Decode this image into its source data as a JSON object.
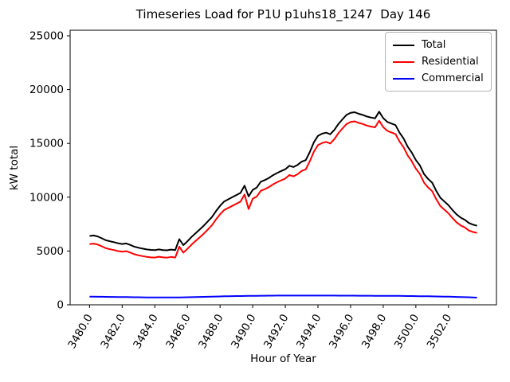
{
  "chart_data": {
    "type": "line",
    "title": "Timeseries Load for P1U p1uhs18_1247  Day 146",
    "xlabel": "Hour of Year",
    "ylabel": "kW total",
    "grid": false,
    "legend_position": "upper right",
    "xlim": [
      3478.81,
      3504.94
    ],
    "ylim": [
      0,
      25517
    ],
    "xticks": {
      "values": [
        3480,
        3482,
        3484,
        3486,
        3488,
        3490,
        3492,
        3494,
        3496,
        3498,
        3500,
        3502
      ],
      "labels": [
        "3480.0",
        "3482.0",
        "3484.0",
        "3486.0",
        "3488.0",
        "3490.0",
        "3492.0",
        "3494.0",
        "3496.0",
        "3498.0",
        "3500.0",
        "3502.0"
      ]
    },
    "yticks": {
      "values": [
        0,
        5000,
        10000,
        15000,
        20000,
        25000
      ],
      "labels": [
        "0",
        "5000",
        "10000",
        "15000",
        "20000",
        "25000"
      ]
    },
    "x": [
      3480.0,
      3480.25,
      3480.5,
      3480.75,
      3481.0,
      3481.25,
      3481.5,
      3481.75,
      3482.0,
      3482.25,
      3482.5,
      3482.75,
      3483.0,
      3483.25,
      3483.5,
      3483.75,
      3484.0,
      3484.25,
      3484.5,
      3484.75,
      3485.0,
      3485.25,
      3485.5,
      3485.75,
      3486.0,
      3486.25,
      3486.5,
      3486.75,
      3487.0,
      3487.25,
      3487.5,
      3487.75,
      3488.0,
      3488.25,
      3488.5,
      3488.75,
      3489.0,
      3489.25,
      3489.5,
      3489.75,
      3490.0,
      3490.25,
      3490.5,
      3490.75,
      3491.0,
      3491.25,
      3491.5,
      3491.75,
      3492.0,
      3492.25,
      3492.5,
      3492.75,
      3493.0,
      3493.25,
      3493.5,
      3493.75,
      3494.0,
      3494.25,
      3494.5,
      3494.75,
      3495.0,
      3495.25,
      3495.5,
      3495.75,
      3496.0,
      3496.25,
      3496.5,
      3496.75,
      3497.0,
      3497.25,
      3497.5,
      3497.75,
      3498.0,
      3498.25,
      3498.5,
      3498.75,
      3499.0,
      3499.25,
      3499.5,
      3499.75,
      3500.0,
      3500.25,
      3500.5,
      3500.75,
      3501.0,
      3501.25,
      3501.5,
      3501.75,
      3502.0,
      3502.25,
      3502.5,
      3502.75,
      3503.0,
      3503.25,
      3503.5,
      3503.75
    ],
    "series": [
      {
        "name": "Total",
        "color": "#000000",
        "values": [
          6400,
          6440,
          6350,
          6180,
          6000,
          5900,
          5820,
          5720,
          5650,
          5700,
          5560,
          5400,
          5300,
          5220,
          5150,
          5100,
          5080,
          5150,
          5090,
          5070,
          5130,
          5080,
          6100,
          5550,
          5900,
          6300,
          6650,
          7000,
          7350,
          7750,
          8150,
          8700,
          9200,
          9600,
          9800,
          10000,
          10200,
          10400,
          11070,
          10070,
          10680,
          10900,
          11440,
          11600,
          11800,
          12050,
          12250,
          12430,
          12600,
          12920,
          12800,
          13000,
          13300,
          13450,
          14200,
          15100,
          15700,
          15900,
          16000,
          15850,
          16250,
          16800,
          17230,
          17650,
          17850,
          17900,
          17750,
          17650,
          17500,
          17400,
          17330,
          17950,
          17350,
          17000,
          16850,
          16700,
          16000,
          15450,
          14700,
          14150,
          13450,
          12950,
          12150,
          11700,
          11350,
          10600,
          9950,
          9600,
          9250,
          8800,
          8400,
          8100,
          7900,
          7600,
          7450,
          7350
        ]
      },
      {
        "name": "Residential",
        "color": "#ff0000",
        "values": [
          5640,
          5685,
          5600,
          5435,
          5260,
          5165,
          5090,
          4995,
          4930,
          4985,
          4850,
          4695,
          4600,
          4525,
          4460,
          4410,
          4395,
          4465,
          4405,
          4385,
          4450,
          4395,
          5410,
          4855,
          5200,
          5590,
          5930,
          6270,
          6610,
          7000,
          7390,
          7930,
          8420,
          8810,
          9000,
          9195,
          9390,
          9585,
          10250,
          8900,
          9850,
          10065,
          10600,
          10755,
          10950,
          11200,
          11395,
          11570,
          11740,
          12060,
          11940,
          12140,
          12440,
          12590,
          13340,
          14240,
          14840,
          15040,
          15140,
          14990,
          15395,
          15945,
          16380,
          16800,
          17000,
          17050,
          16905,
          16805,
          16660,
          16560,
          16490,
          17115,
          16515,
          16170,
          16020,
          15870,
          15175,
          14630,
          13885,
          13340,
          12645,
          12150,
          11355,
          10910,
          10565,
          9820,
          9180,
          8840,
          8495,
          8055,
          7665,
          7375,
          7190,
          6900,
          6765,
          6685
        ]
      },
      {
        "name": "Commercial",
        "color": "#0000ff",
        "values": [
          760,
          755,
          750,
          745,
          740,
          735,
          730,
          725,
          720,
          715,
          710,
          705,
          700,
          695,
          690,
          688,
          686,
          685,
          684,
          683,
          682,
          684,
          690,
          695,
          700,
          710,
          720,
          730,
          740,
          750,
          760,
          770,
          780,
          790,
          800,
          805,
          810,
          815,
          820,
          825,
          830,
          835,
          840,
          845,
          850,
          852,
          855,
          858,
          860,
          860,
          860,
          860,
          860,
          860,
          860,
          860,
          860,
          860,
          860,
          858,
          856,
          854,
          852,
          850,
          850,
          848,
          846,
          844,
          842,
          840,
          838,
          836,
          834,
          832,
          830,
          828,
          825,
          820,
          815,
          810,
          805,
          800,
          795,
          790,
          785,
          778,
          770,
          762,
          755,
          745,
          735,
          725,
          712,
          700,
          685,
          665
        ]
      }
    ]
  }
}
